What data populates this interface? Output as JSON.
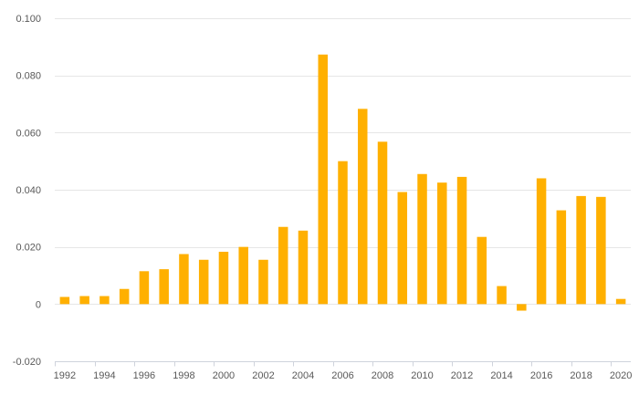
{
  "chart_data": {
    "type": "bar",
    "title": "",
    "xlabel": "",
    "ylabel": "",
    "ylim": [
      -0.02,
      0.1
    ],
    "y_ticks": [
      -0.02,
      0,
      0.02,
      0.04,
      0.06,
      0.08,
      0.1
    ],
    "y_tick_labels": [
      "-0.020",
      "0",
      "0.020",
      "0.040",
      "0.060",
      "0.080",
      "0.100"
    ],
    "grid": true,
    "legend": "none",
    "bar_color": "#FFB000",
    "categories": [
      "1992",
      "1993",
      "1994",
      "1995",
      "1996",
      "1997",
      "1998",
      "1999",
      "2000",
      "2001",
      "2002",
      "2003",
      "2004",
      "2005",
      "2006",
      "2007",
      "2008",
      "2009",
      "2010",
      "2011",
      "2012",
      "2013",
      "2014",
      "2015",
      "2016",
      "2017",
      "2018",
      "2019",
      "2020"
    ],
    "x_tick_labels": [
      "1992",
      "1994",
      "1996",
      "1998",
      "2000",
      "2002",
      "2004",
      "2006",
      "2008",
      "2010",
      "2012",
      "2014",
      "2016",
      "2018",
      "2020"
    ],
    "values": [
      0.0025,
      0.0028,
      0.0028,
      0.0053,
      0.0115,
      0.0122,
      0.0175,
      0.0155,
      0.0183,
      0.02,
      0.0155,
      0.027,
      0.0257,
      0.0873,
      0.05,
      0.0683,
      0.0568,
      0.0392,
      0.0455,
      0.0425,
      0.0445,
      0.0235,
      0.0063,
      -0.0023,
      0.044,
      0.0328,
      0.0378,
      0.0375,
      0.0018
    ]
  }
}
